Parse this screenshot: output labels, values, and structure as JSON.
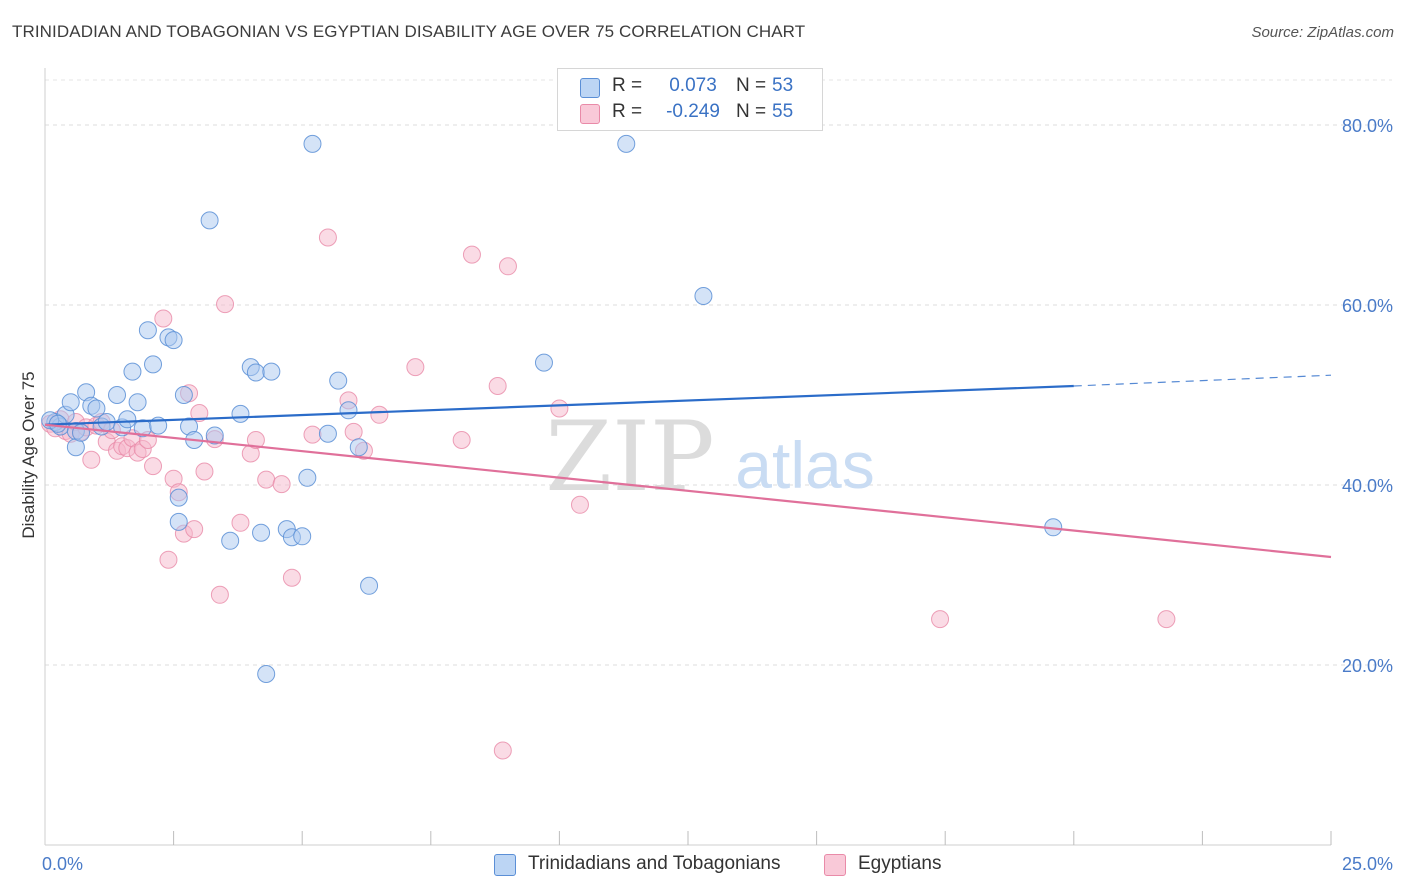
{
  "title": "TRINIDADIAN AND TOBAGONIAN VS EGYPTIAN DISABILITY AGE OVER 75 CORRELATION CHART",
  "source": "Source: ZipAtlas.com",
  "watermark": {
    "zip": "ZIP",
    "atlas": "atlas"
  },
  "legend_top": {
    "rows": [
      {
        "r_label": "R =",
        "r_value": "0.073",
        "n_label": "N =",
        "n_value": "53"
      },
      {
        "r_label": "R =",
        "r_value": "-0.249",
        "n_label": "N =",
        "n_value": "55"
      }
    ]
  },
  "legend_bottom": {
    "items": [
      "Trinidadians and Tobagonians",
      "Egyptians"
    ]
  },
  "chart_data": {
    "type": "scatter",
    "title": "TRINIDADIAN AND TOBAGONIAN VS EGYPTIAN DISABILITY AGE OVER 75 CORRELATION CHART",
    "xlabel": "",
    "ylabel": "Disability Age Over 75",
    "xlim": [
      0,
      25
    ],
    "ylim": [
      0,
      85
    ],
    "x_tick_labels": [
      {
        "value": 0,
        "label": "0.0%"
      },
      {
        "value": 25,
        "label": "25.0%"
      }
    ],
    "y_tick_labels": [
      {
        "value": 20,
        "label": "20.0%"
      },
      {
        "value": 40,
        "label": "40.0%"
      },
      {
        "value": 60,
        "label": "60.0%"
      },
      {
        "value": 80,
        "label": "80.0%"
      }
    ],
    "x_minor_ticks": [
      2.5,
      5,
      7.5,
      10,
      12.5,
      15,
      17.5,
      20,
      22.5,
      25
    ],
    "grid": "horizontal dashed",
    "legend_position": "top-center",
    "colors": {
      "blue_fill": "#a9c8f0",
      "blue_stroke": "#5b8fd6",
      "blue_line": "#2b6cc9",
      "pink_fill": "#f6b8cc",
      "pink_stroke": "#e98aa8",
      "pink_line": "#e0709a"
    },
    "series": [
      {
        "name": "Trinidadians and Tobagonians",
        "color": "#a9c8f0",
        "trend": {
          "x_start": 0,
          "y_start": 46.7,
          "x_end": 20,
          "y_end": 51.0,
          "x_dash_end": 25,
          "y_dash_end": 52.2
        },
        "points": [
          [
            0.2,
            47.0
          ],
          [
            0.3,
            46.5
          ],
          [
            0.4,
            47.8
          ],
          [
            0.5,
            49.2
          ],
          [
            0.6,
            46.0
          ],
          [
            0.6,
            44.2
          ],
          [
            0.7,
            45.8
          ],
          [
            0.8,
            50.3
          ],
          [
            0.9,
            48.8
          ],
          [
            1.0,
            48.5
          ],
          [
            1.1,
            46.5
          ],
          [
            1.2,
            47.0
          ],
          [
            1.4,
            50.0
          ],
          [
            1.5,
            46.4
          ],
          [
            1.6,
            47.3
          ],
          [
            1.7,
            52.6
          ],
          [
            1.8,
            49.2
          ],
          [
            1.9,
            46.3
          ],
          [
            2.0,
            57.2
          ],
          [
            2.1,
            53.4
          ],
          [
            2.2,
            46.6
          ],
          [
            2.4,
            56.4
          ],
          [
            2.5,
            56.1
          ],
          [
            2.6,
            38.6
          ],
          [
            2.6,
            35.9
          ],
          [
            2.7,
            50.0
          ],
          [
            2.8,
            46.5
          ],
          [
            2.9,
            45.0
          ],
          [
            3.2,
            69.4
          ],
          [
            3.3,
            45.5
          ],
          [
            3.6,
            33.8
          ],
          [
            3.8,
            47.9
          ],
          [
            4.0,
            53.1
          ],
          [
            4.1,
            52.5
          ],
          [
            4.2,
            34.7
          ],
          [
            4.3,
            19.0
          ],
          [
            4.4,
            52.6
          ],
          [
            4.7,
            35.1
          ],
          [
            4.8,
            34.2
          ],
          [
            5.0,
            34.3
          ],
          [
            5.1,
            40.8
          ],
          [
            5.2,
            77.9
          ],
          [
            5.5,
            45.7
          ],
          [
            5.7,
            51.6
          ],
          [
            5.9,
            48.3
          ],
          [
            6.3,
            28.8
          ],
          [
            6.1,
            44.2
          ],
          [
            9.7,
            53.6
          ],
          [
            11.3,
            77.9
          ],
          [
            12.8,
            61.0
          ],
          [
            19.6,
            35.3
          ],
          [
            0.1,
            47.2
          ],
          [
            0.25,
            46.8
          ]
        ]
      },
      {
        "name": "Egyptians",
        "color": "#f6b8cc",
        "trend": {
          "x_start": 0,
          "y_start": 46.7,
          "x_end": 25,
          "y_end": 32.0
        },
        "points": [
          [
            0.1,
            46.8
          ],
          [
            0.2,
            46.3
          ],
          [
            0.3,
            47.3
          ],
          [
            0.4,
            46.0
          ],
          [
            0.5,
            45.7
          ],
          [
            0.6,
            47.0
          ],
          [
            0.7,
            45.9
          ],
          [
            0.8,
            46.4
          ],
          [
            0.9,
            42.8
          ],
          [
            1.0,
            46.6
          ],
          [
            1.1,
            47.0
          ],
          [
            1.2,
            44.8
          ],
          [
            1.3,
            46.1
          ],
          [
            1.4,
            43.8
          ],
          [
            1.5,
            44.3
          ],
          [
            1.6,
            44.1
          ],
          [
            1.7,
            45.2
          ],
          [
            1.8,
            43.6
          ],
          [
            1.9,
            44.0
          ],
          [
            2.0,
            45.0
          ],
          [
            2.1,
            42.1
          ],
          [
            2.3,
            58.5
          ],
          [
            2.4,
            31.7
          ],
          [
            2.5,
            40.7
          ],
          [
            2.6,
            39.2
          ],
          [
            2.7,
            34.6
          ],
          [
            2.8,
            50.2
          ],
          [
            2.9,
            35.1
          ],
          [
            3.0,
            48.0
          ],
          [
            3.1,
            41.5
          ],
          [
            3.3,
            45.1
          ],
          [
            3.4,
            27.8
          ],
          [
            3.5,
            60.1
          ],
          [
            3.8,
            35.8
          ],
          [
            4.0,
            43.5
          ],
          [
            4.1,
            45.0
          ],
          [
            4.3,
            40.6
          ],
          [
            4.6,
            40.1
          ],
          [
            4.8,
            29.7
          ],
          [
            5.2,
            45.6
          ],
          [
            5.5,
            67.5
          ],
          [
            5.9,
            49.4
          ],
          [
            6.0,
            45.9
          ],
          [
            6.2,
            43.8
          ],
          [
            6.5,
            47.8
          ],
          [
            7.2,
            53.1
          ],
          [
            8.1,
            45.0
          ],
          [
            8.3,
            65.6
          ],
          [
            8.8,
            51.0
          ],
          [
            8.9,
            10.5
          ],
          [
            9.0,
            64.3
          ],
          [
            10.0,
            48.5
          ],
          [
            10.4,
            37.8
          ],
          [
            17.4,
            25.1
          ],
          [
            21.8,
            25.1
          ]
        ]
      }
    ]
  }
}
